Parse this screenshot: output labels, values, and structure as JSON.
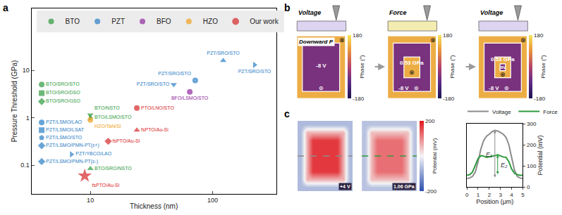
{
  "chart_data": [
    {
      "panel": "a",
      "type": "scatter",
      "x_label": "Thickness (nm)",
      "y_label": "Pressure Threshold (GPa)",
      "log": true,
      "grid": false,
      "legend": "top",
      "xlim": [
        3.3,
        330
      ],
      "ylim": [
        0.025,
        200
      ],
      "xticks": [
        10,
        100
      ],
      "yticks": [
        0.1,
        1,
        10
      ],
      "series": [
        {
          "name": "BTO",
          "color": "#2e9a3e",
          "points": [
            {
              "x": 4,
              "y": 5,
              "label": "BTO/SRO/STO",
              "marker": "circle"
            },
            {
              "x": 4,
              "y": 3.3,
              "label": "BTO/SRO/DSO",
              "marker": "square"
            },
            {
              "x": 4,
              "y": 2.2,
              "label": "BTO/SRO/GSO",
              "marker": "diamond"
            },
            {
              "x": 10,
              "y": 1.15,
              "label": "BTO/NSTO",
              "marker": "triangle-down"
            },
            {
              "x": 10,
              "y": 1.0,
              "label": "BTO/LSMO/STO",
              "marker": "triangle-right"
            },
            {
              "x": 10,
              "y": 0.085,
              "label": "BTO/SRO/NSTO",
              "marker": "triangle-up"
            }
          ]
        },
        {
          "name": "PZT",
          "color": "#2a7dc4",
          "points": [
            {
              "x": 4,
              "y": 0.8,
              "label": "PZT/LSMO/LAO",
              "marker": "circle"
            },
            {
              "x": 4,
              "y": 0.55,
              "label": "PZT/LSMO/LSAT",
              "marker": "square"
            },
            {
              "x": 4,
              "y": 0.38,
              "label": "PZT/LSMO/STO",
              "marker": "pentagon"
            },
            {
              "x": 4,
              "y": 0.26,
              "label": "PZT/LSMO/PMN-PT(ε+)",
              "marker": "diamond"
            },
            {
              "x": 7,
              "y": 0.17,
              "label": "PZT/YBCO/LAO",
              "marker": "triangle-right"
            },
            {
              "x": 4,
              "y": 0.12,
              "label": "PZT/LSMO/PMN-PT(ε-)",
              "marker": "diamond"
            },
            {
              "x": 48,
              "y": 5,
              "label": "PZT/SRO/STO",
              "marker": "triangle-down"
            },
            {
              "x": 72,
              "y": 6.1,
              "label": "PZT/SRO/STO",
              "marker": "circle-dot"
            },
            {
              "x": 122,
              "y": 16,
              "label": "PZT/SRO/STO",
              "marker": "triangle-up"
            },
            {
              "x": 220,
              "y": 13,
              "label": "PZT/SRO/STO",
              "marker": "triangle-right"
            }
          ]
        },
        {
          "name": "BFO",
          "color": "#8e2a9e",
          "points": [
            {
              "x": 65,
              "y": 3.5,
              "label": "BFO/LSMO/STO",
              "marker": "circle"
            }
          ]
        },
        {
          "name": "HZO",
          "color": "#f0a020",
          "points": [
            {
              "x": 10,
              "y": 0.9,
              "label": "HZO/TaN/Si",
              "marker": "circle"
            }
          ]
        },
        {
          "name": "Our work",
          "color": "#d62728",
          "points": [
            {
              "x": 24,
              "y": 1.6,
              "label": "PTO/LNO/STO",
              "marker": "circle"
            },
            {
              "x": 24,
              "y": 0.55,
              "label": "fsPTO/Au-Si",
              "marker": "triangle-up"
            },
            {
              "x": 14,
              "y": 0.32,
              "label": "fsPTO/Au-Si",
              "marker": "diamond"
            },
            {
              "x": 9,
              "y": 0.06,
              "label": "fsPTO/Au-Si",
              "marker": "star"
            }
          ]
        }
      ]
    },
    {
      "panel": "b",
      "type": "heatmap",
      "tick_labels": false,
      "zlim": [
        -180,
        180
      ],
      "zticks": [
        -180,
        180
      ],
      "colorbar_title": "Phase (°)",
      "images": [
        {
          "mode": "Voltage",
          "annotations": [
            "Downward P",
            "-8 V",
            "⊙",
            "⊗"
          ],
          "z": [
            [
              120,
              120,
              120,
              120,
              120,
              120,
              120,
              120,
              120
            ],
            [
              120,
              -60,
              -60,
              -60,
              -60,
              -60,
              -60,
              -60,
              120
            ],
            [
              120,
              -60,
              -60,
              -60,
              -60,
              -60,
              -60,
              -60,
              120
            ],
            [
              120,
              -60,
              -60,
              -60,
              -60,
              -60,
              -60,
              -60,
              120
            ],
            [
              120,
              -60,
              -60,
              -60,
              -60,
              -60,
              -60,
              -60,
              120
            ],
            [
              120,
              -60,
              -60,
              -60,
              -60,
              -60,
              -60,
              -60,
              120
            ],
            [
              120,
              -60,
              -60,
              -60,
              -60,
              -60,
              -60,
              -60,
              120
            ],
            [
              120,
              -60,
              -60,
              -60,
              -60,
              -60,
              -60,
              -60,
              120
            ],
            [
              120,
              120,
              120,
              120,
              120,
              120,
              120,
              120,
              120
            ]
          ]
        },
        {
          "mode": "Force",
          "annotations": [
            "0.53 GPa",
            "-8 V",
            "⊙",
            "⊗",
            "⊗"
          ],
          "z": [
            [
              120,
              120,
              120,
              120,
              120,
              120,
              120,
              120,
              120
            ],
            [
              120,
              -60,
              -60,
              -60,
              -60,
              -60,
              -60,
              -60,
              120
            ],
            [
              120,
              -60,
              -60,
              -60,
              -60,
              -60,
              -60,
              -60,
              120
            ],
            [
              120,
              -60,
              -60,
              120,
              120,
              120,
              -60,
              -60,
              120
            ],
            [
              120,
              -60,
              -60,
              120,
              120,
              120,
              -60,
              -60,
              120
            ],
            [
              120,
              -60,
              -60,
              120,
              120,
              120,
              -60,
              -60,
              120
            ],
            [
              120,
              -60,
              -60,
              -60,
              -60,
              -60,
              -60,
              -60,
              120
            ],
            [
              120,
              -60,
              -60,
              -60,
              -60,
              -60,
              -60,
              -60,
              120
            ],
            [
              120,
              120,
              120,
              120,
              120,
              120,
              120,
              120,
              120
            ]
          ]
        },
        {
          "mode": "Voltage",
          "annotations": [
            "0.53 GPa",
            "-8V",
            "-8 V",
            "⊙",
            "⊗",
            "⊗"
          ],
          "z": [
            [
              120,
              120,
              120,
              120,
              120,
              120,
              120,
              120,
              120
            ],
            [
              120,
              -60,
              -60,
              -60,
              -60,
              -60,
              -60,
              -60,
              120
            ],
            [
              120,
              -60,
              -60,
              -60,
              -60,
              -60,
              -60,
              -60,
              120
            ],
            [
              120,
              -60,
              -60,
              120,
              120,
              120,
              -60,
              -60,
              120
            ],
            [
              120,
              -60,
              -60,
              120,
              -60,
              120,
              -60,
              -60,
              120
            ],
            [
              120,
              -60,
              -60,
              120,
              120,
              120,
              -60,
              -60,
              120
            ],
            [
              120,
              -60,
              -60,
              -60,
              -60,
              -60,
              -60,
              -60,
              120
            ],
            [
              120,
              -60,
              -60,
              -60,
              -60,
              -60,
              -60,
              -60,
              120
            ],
            [
              120,
              120,
              120,
              120,
              120,
              120,
              120,
              120,
              120
            ]
          ]
        }
      ]
    },
    {
      "panel": "c",
      "type": "heatmap",
      "tick_labels": false,
      "zlim": [
        -200,
        200
      ],
      "zticks": [
        -200,
        200
      ],
      "colorbar_title": "Potential (mV)",
      "images": [
        {
          "inset": "+4 V",
          "z": [
            [
              -70,
              -70,
              -70,
              -70,
              -70,
              -70,
              -70,
              -70,
              -70
            ],
            [
              -70,
              60,
              60,
              60,
              60,
              60,
              60,
              60,
              -70
            ],
            [
              -70,
              60,
              170,
              170,
              170,
              170,
              170,
              60,
              -70
            ],
            [
              -70,
              60,
              170,
              170,
              170,
              170,
              170,
              60,
              -70
            ],
            [
              -70,
              60,
              170,
              170,
              170,
              170,
              170,
              60,
              -70
            ],
            [
              -70,
              60,
              170,
              170,
              170,
              170,
              170,
              60,
              -70
            ],
            [
              -70,
              60,
              170,
              170,
              170,
              170,
              170,
              60,
              -70
            ],
            [
              -70,
              60,
              60,
              60,
              60,
              60,
              60,
              60,
              -70
            ],
            [
              -70,
              -70,
              -70,
              -70,
              -70,
              -70,
              -70,
              -70,
              -70
            ]
          ]
        },
        {
          "inset": "1.06 GPa",
          "z": [
            [
              -60,
              -60,
              -60,
              -60,
              -60,
              -60,
              -60,
              -60,
              -60
            ],
            [
              -60,
              50,
              50,
              50,
              50,
              50,
              50,
              50,
              -60
            ],
            [
              -60,
              50,
              120,
              120,
              120,
              120,
              120,
              50,
              -60
            ],
            [
              -60,
              50,
              120,
              120,
              120,
              120,
              120,
              50,
              -60
            ],
            [
              -60,
              50,
              120,
              120,
              120,
              120,
              120,
              50,
              -60
            ],
            [
              -60,
              50,
              120,
              120,
              120,
              120,
              120,
              50,
              -60
            ],
            [
              -60,
              50,
              120,
              120,
              120,
              120,
              120,
              50,
              -60
            ],
            [
              -60,
              50,
              50,
              50,
              50,
              50,
              50,
              50,
              -60
            ],
            [
              -60,
              -60,
              -60,
              -60,
              -60,
              -60,
              -60,
              -60,
              -60
            ]
          ]
        }
      ]
    },
    {
      "type": "line",
      "x_label": "Position (μm)",
      "y_label": "Potential (mV)",
      "grid": false,
      "legend": "top",
      "xlim": [
        0,
        5
      ],
      "ylim": [
        0,
        300
      ],
      "xticks": [
        0,
        1,
        2,
        3,
        4,
        5
      ],
      "yticks": [
        0,
        100,
        200,
        300
      ],
      "annotations": [
        "E₁",
        "E₂"
      ],
      "x": [
        0,
        0.25,
        0.5,
        0.75,
        1,
        1.25,
        1.5,
        1.75,
        2,
        2.25,
        2.5,
        2.75,
        3,
        3.25,
        3.5,
        3.75,
        4,
        4.25,
        4.5,
        4.75,
        5
      ],
      "series": [
        {
          "name": "Voltage",
          "color": "#8c8c8c",
          "values": [
            40,
            42,
            50,
            70,
            120,
            180,
            220,
            240,
            250,
            262,
            268,
            265,
            258,
            250,
            235,
            200,
            140,
            80,
            50,
            42,
            40
          ]
        },
        {
          "name": "Force",
          "color": "#2e9a3e",
          "values": [
            55,
            58,
            70,
            100,
            135,
            148,
            146,
            140,
            142,
            145,
            148,
            152,
            146,
            142,
            140,
            120,
            85,
            65,
            58,
            55,
            55
          ]
        }
      ]
    }
  ]
}
